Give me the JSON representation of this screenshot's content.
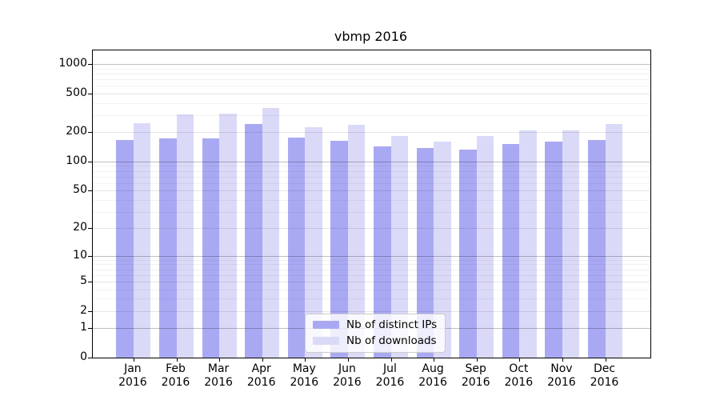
{
  "title": "vbmp 2016",
  "colors": {
    "series_distinct_ips": "#a9a9f3",
    "series_downloads": "#dadaf8",
    "axis": "#000000",
    "grid_major": "rgba(0,0,0,0.25)",
    "grid_labeled_minor": "rgba(0,0,0,0.10)",
    "grid_minor": "rgba(0,0,0,0.05)"
  },
  "chart_data": {
    "type": "bar",
    "title": "vbmp 2016",
    "xlabel": "",
    "ylabel": "",
    "yscale": "log1p",
    "grid": true,
    "legend_position": "lower center",
    "ylim": [
      0,
      1380
    ],
    "yticks": [
      0,
      1,
      2,
      5,
      10,
      20,
      50,
      100,
      200,
      500,
      1000
    ],
    "ytick_labels": [
      "0",
      "1",
      "2",
      "5",
      "10",
      "20",
      "50",
      "100",
      "200",
      "500",
      "1000"
    ],
    "grid_decade_lines": [
      1,
      10,
      100,
      1000
    ],
    "grid_labeled_minor_lines": [
      2,
      5,
      20,
      50,
      200,
      500
    ],
    "grid_unlabeled_minor_lines": [
      3,
      4,
      6,
      7,
      8,
      9,
      30,
      40,
      60,
      70,
      80,
      90,
      300,
      400,
      600,
      700,
      800,
      900
    ],
    "categories": [
      "Jan",
      "Feb",
      "Mar",
      "Apr",
      "May",
      "Jun",
      "Jul",
      "Aug",
      "Sep",
      "Oct",
      "Nov",
      "Dec"
    ],
    "category_year": "2016",
    "series": [
      {
        "name": "Nb of distinct IPs",
        "color": "#a9a9f3",
        "values": [
          168,
          174,
          174,
          242,
          176,
          165,
          144,
          138,
          133,
          152,
          159,
          166
        ]
      },
      {
        "name": "Nb of downloads",
        "color": "#dadaf8",
        "values": [
          248,
          305,
          309,
          355,
          224,
          237,
          182,
          160,
          182,
          210,
          210,
          243
        ]
      }
    ]
  }
}
